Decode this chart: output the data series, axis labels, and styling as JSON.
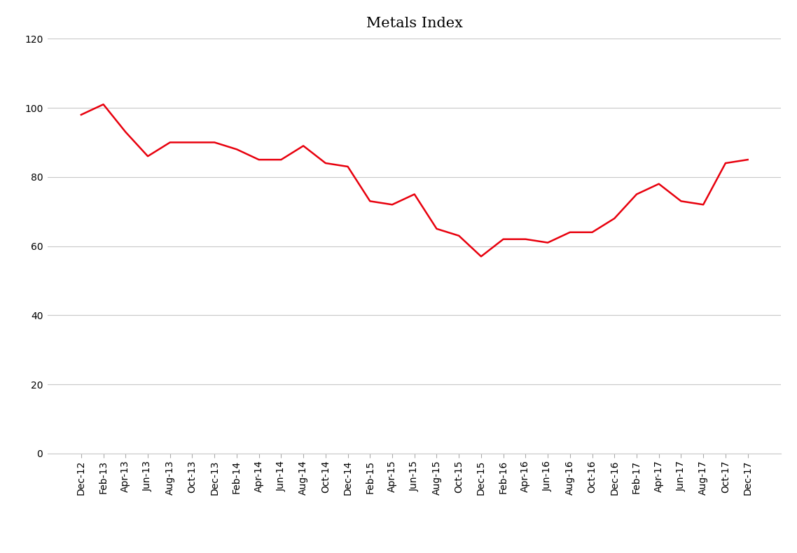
{
  "title": "Metals Index",
  "line_color": "#E8000D",
  "background_color": "#ffffff",
  "grid_color": "#c8c8c8",
  "ylim": [
    0,
    120
  ],
  "yticks": [
    0,
    20,
    40,
    60,
    80,
    100,
    120
  ],
  "title_fontsize": 15,
  "tick_fontsize": 10,
  "labels": [
    "Dec-12",
    "Feb-13",
    "Apr-13",
    "Jun-13",
    "Aug-13",
    "Oct-13",
    "Dec-13",
    "Feb-14",
    "Apr-14",
    "Jun-14",
    "Aug-14",
    "Oct-14",
    "Dec-14",
    "Feb-15",
    "Apr-15",
    "Jun-15",
    "Aug-15",
    "Oct-15",
    "Dec-15",
    "Feb-16",
    "Apr-16",
    "Jun-16",
    "Aug-16",
    "Oct-16",
    "Dec-16",
    "Feb-17",
    "Apr-17",
    "Jun-17",
    "Aug-17",
    "Oct-17",
    "Dec-17"
  ],
  "values": [
    98,
    101,
    93,
    86,
    90,
    90,
    90,
    88,
    85,
    85,
    89,
    84,
    83,
    73,
    72,
    75,
    65,
    63,
    57,
    62,
    62,
    61,
    64,
    64,
    68,
    75,
    78,
    73,
    72,
    84,
    85
  ]
}
